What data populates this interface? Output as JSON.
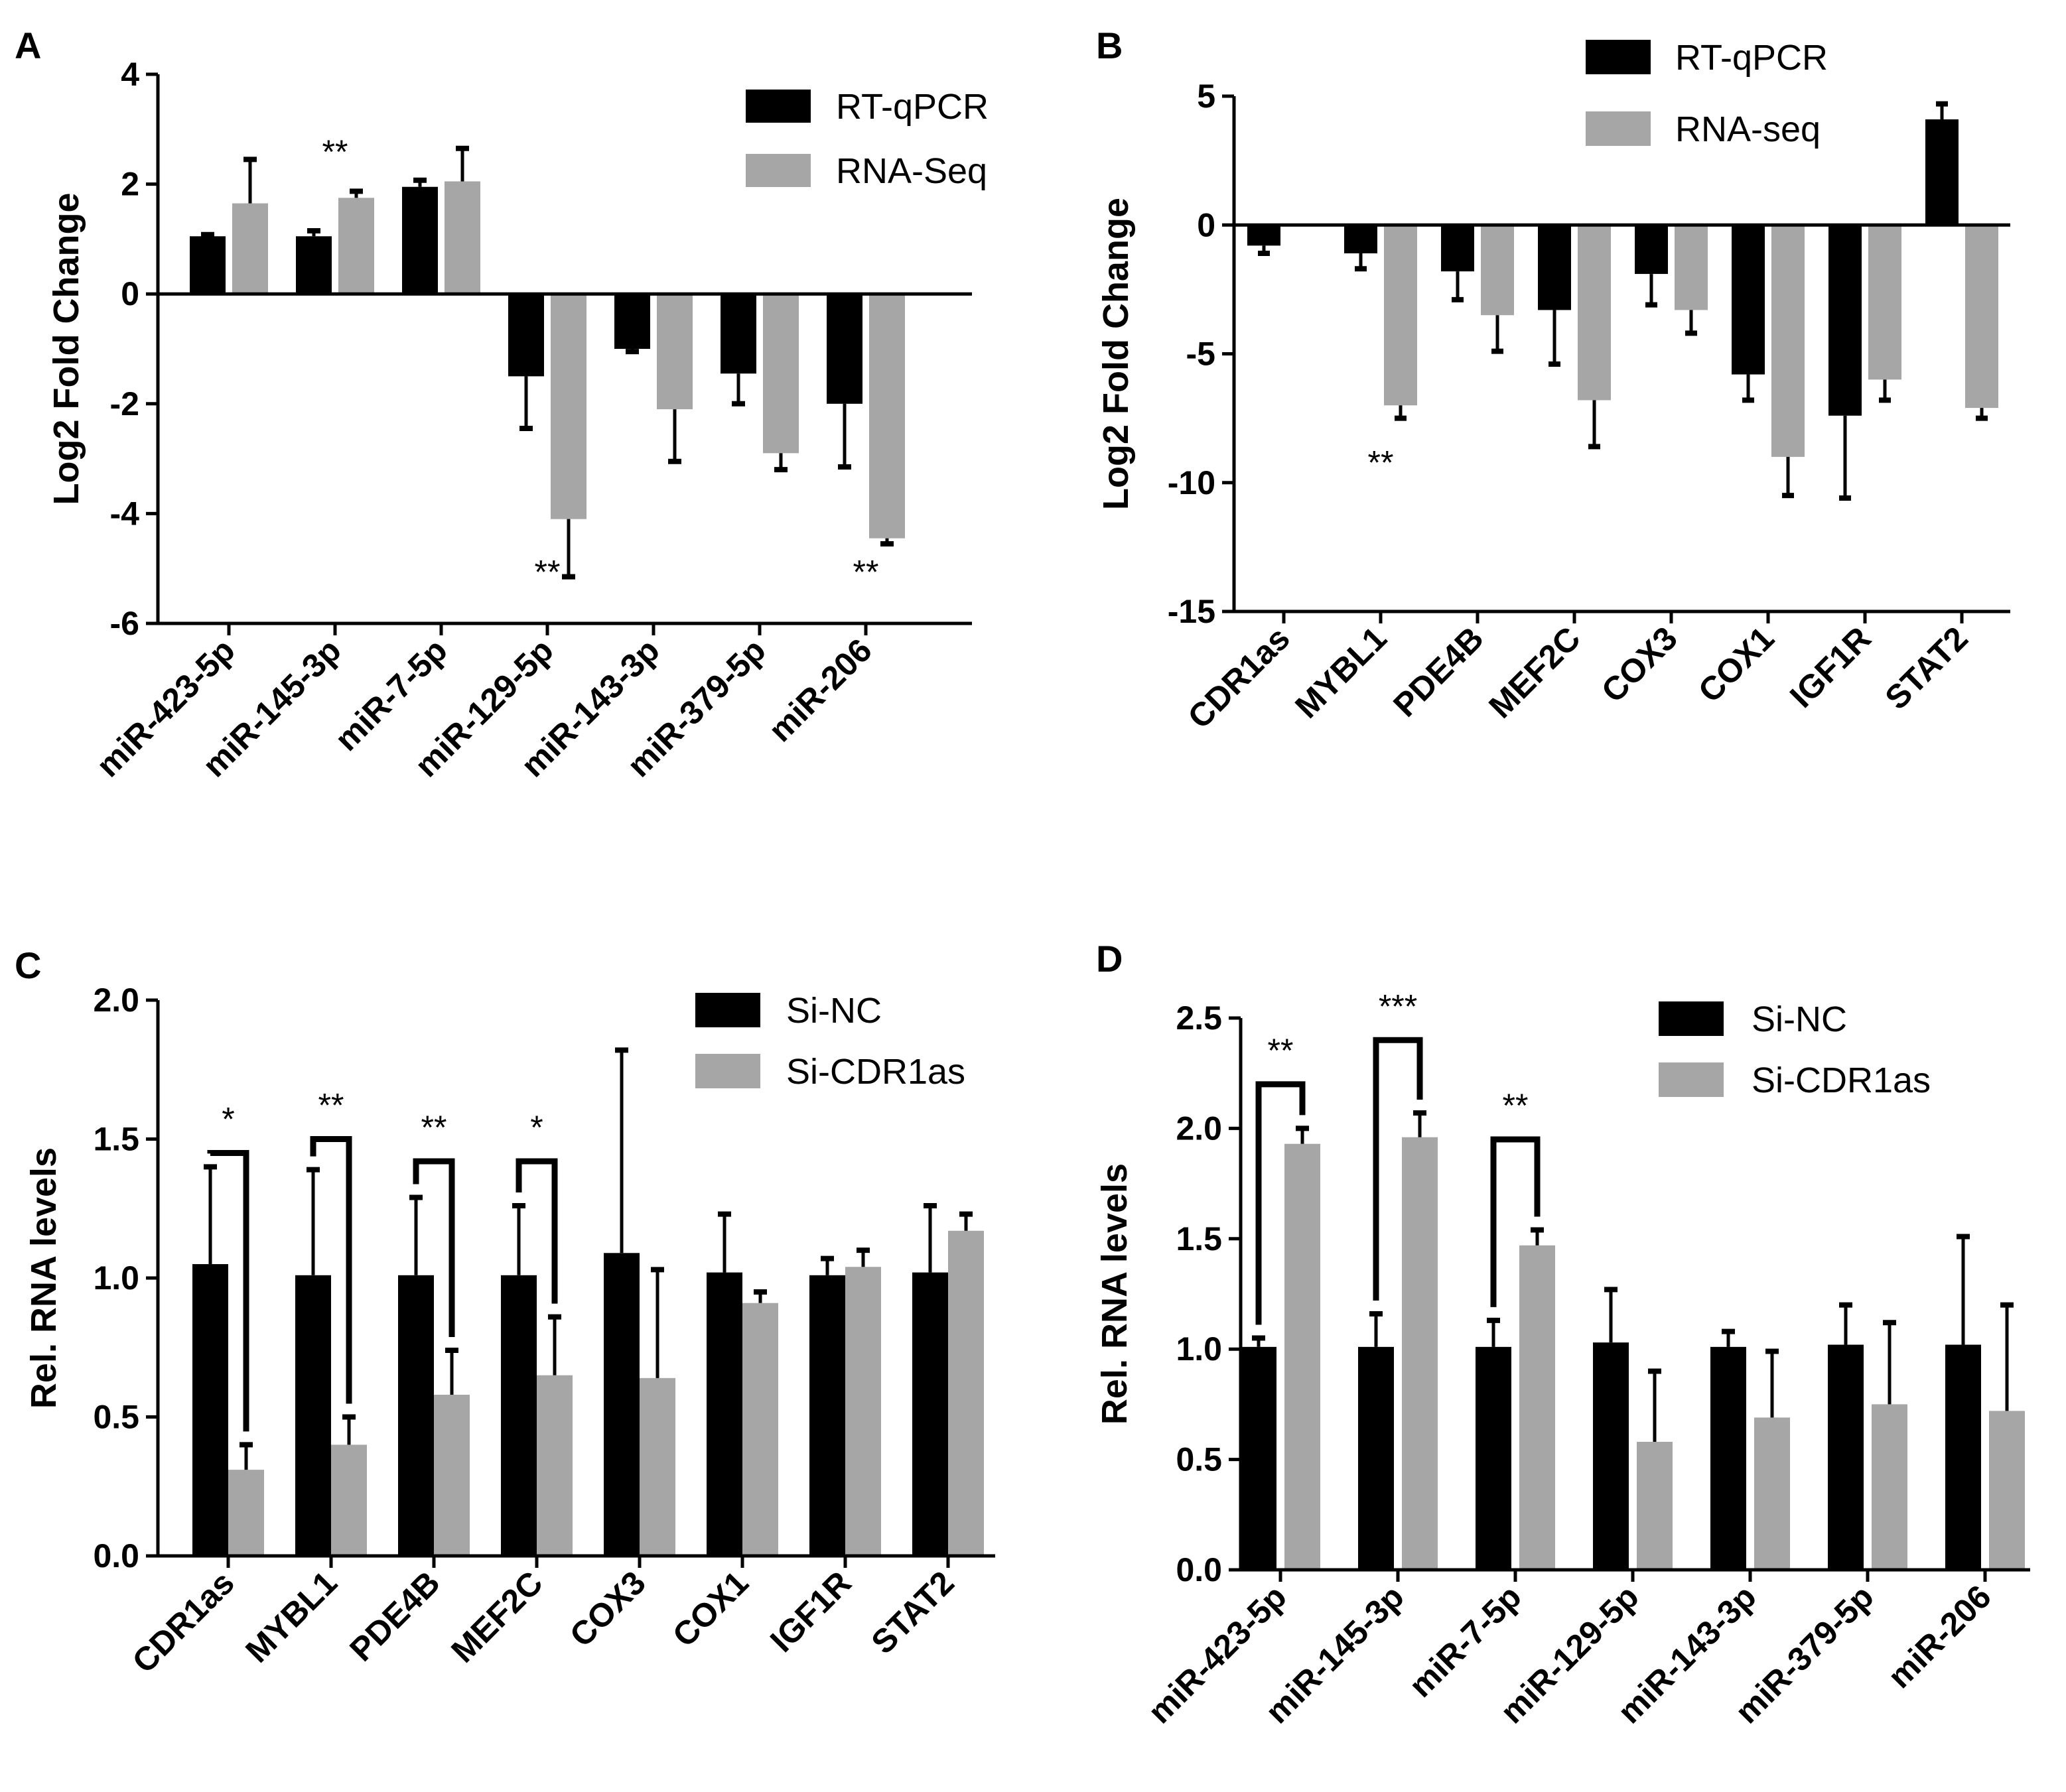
{
  "colors": {
    "rtqpcr": "#000000",
    "seq": "#a6a6a6",
    "axis": "#000000"
  },
  "chart_data": [
    {
      "panel": "A",
      "type": "bar",
      "ylabel": "Log2 Fold Change",
      "ylim": [
        -6,
        4
      ],
      "yticks": [
        4,
        2,
        0,
        -2,
        -4,
        -6
      ],
      "ytick_labels": [
        "4",
        "2",
        "0",
        "-2",
        "-4",
        "-6"
      ],
      "categories": [
        "miR-423-5p",
        "miR-145-3p",
        "miR-7-5p",
        "miR-129-5p",
        "miR-143-3p",
        "miR-379-5p",
        "miR-206"
      ],
      "series": [
        {
          "name": "RT-qPCR",
          "values": [
            1.05,
            1.05,
            1.95,
            -1.5,
            -1.0,
            -1.45,
            -2.0
          ],
          "errors": [
            0.03,
            0.1,
            0.12,
            0.95,
            0.05,
            0.55,
            1.15
          ]
        },
        {
          "name": "RNA-Seq",
          "values": [
            1.65,
            1.75,
            2.05,
            -4.1,
            -2.1,
            -2.9,
            -4.45
          ],
          "errors": [
            0.8,
            0.12,
            0.6,
            1.05,
            0.95,
            0.3,
            0.1
          ]
        }
      ],
      "annotations": [
        {
          "category": 1,
          "text": "**",
          "y": 2.6
        },
        {
          "category": 3,
          "text": "**",
          "y": -5.05
        },
        {
          "category": 6,
          "text": "**",
          "y": -5.05
        }
      ]
    },
    {
      "panel": "B",
      "type": "bar",
      "ylabel": "Log2 Fold Change",
      "ylim": [
        -15,
        5
      ],
      "yticks": [
        5,
        0,
        -5,
        -10,
        -15
      ],
      "ytick_labels": [
        "5",
        "0",
        "-5",
        "-10",
        "-15"
      ],
      "categories": [
        "CDR1as",
        "MYBL1",
        "PDE4B",
        "MEF2C",
        "COX3",
        "COX1",
        "IGF1R",
        "STAT2"
      ],
      "series": [
        {
          "name": "RT-qPCR",
          "values": [
            -0.8,
            -1.1,
            -1.8,
            -3.3,
            -1.9,
            -5.8,
            -7.4,
            4.1
          ],
          "errors": [
            0.3,
            0.6,
            1.1,
            2.1,
            1.2,
            1.0,
            3.2,
            0.6
          ]
        },
        {
          "name": "RNA-seq",
          "values": [
            0,
            -7.0,
            -3.5,
            -6.8,
            -3.3,
            -9.0,
            -6.0,
            -7.1
          ],
          "errors": [
            0,
            0.5,
            1.4,
            1.8,
            0.9,
            1.5,
            0.8,
            0.4
          ]
        }
      ],
      "annotations": [
        {
          "category": 1,
          "text": "**",
          "y": -9.2
        }
      ]
    },
    {
      "panel": "C",
      "type": "bar",
      "ylabel": "Rel. RNA levels",
      "ylim": [
        0,
        2.0
      ],
      "yticks": [
        2.0,
        1.5,
        1.0,
        0.5,
        0.0
      ],
      "ytick_labels": [
        "2.0",
        "1.5",
        "1.0",
        "0.5",
        "0.0"
      ],
      "categories": [
        "CDR1as",
        "MYBL1",
        "PDE4B",
        "MEF2C",
        "COX3",
        "COX1",
        "IGF1R",
        "STAT2"
      ],
      "series": [
        {
          "name": "Si-NC",
          "values": [
            1.05,
            1.01,
            1.01,
            1.01,
            1.09,
            1.02,
            1.01,
            1.02
          ],
          "errors": [
            0.35,
            0.38,
            0.28,
            0.25,
            0.73,
            0.21,
            0.06,
            0.24
          ]
        },
        {
          "name": "Si-CDR1as",
          "values": [
            0.31,
            0.4,
            0.58,
            0.65,
            0.64,
            0.91,
            1.04,
            1.17
          ],
          "errors": [
            0.09,
            0.1,
            0.16,
            0.21,
            0.39,
            0.04,
            0.06,
            0.06
          ]
        }
      ],
      "brackets": [
        {
          "category": 0,
          "top": 1.45,
          "text": "*"
        },
        {
          "category": 1,
          "top": 1.5,
          "text": "**"
        },
        {
          "category": 2,
          "top": 1.42,
          "text": "**"
        },
        {
          "category": 3,
          "top": 1.42,
          "text": "*"
        }
      ]
    },
    {
      "panel": "D",
      "type": "bar",
      "ylabel": "Rel. RNA levels",
      "ylim": [
        0,
        2.5
      ],
      "yticks": [
        2.5,
        2.0,
        1.5,
        1.0,
        0.5,
        0.0
      ],
      "ytick_labels": [
        "2.5",
        "2.0",
        "1.5",
        "1.0",
        "0.5",
        "0.0"
      ],
      "categories": [
        "miR-423-5p",
        "miR-145-3p",
        "miR-7-5p",
        "miR-129-5p",
        "miR-143-3p",
        "miR-379-5p",
        "miR-206"
      ],
      "series": [
        {
          "name": "Si-NC",
          "values": [
            1.01,
            1.01,
            1.01,
            1.03,
            1.01,
            1.02,
            1.02
          ],
          "errors": [
            0.04,
            0.15,
            0.12,
            0.24,
            0.07,
            0.18,
            0.49
          ]
        },
        {
          "name": "Si-CDR1as",
          "values": [
            1.93,
            1.96,
            1.47,
            0.58,
            0.69,
            0.75,
            0.72
          ],
          "errors": [
            0.07,
            0.11,
            0.07,
            0.32,
            0.3,
            0.37,
            0.48
          ]
        }
      ],
      "brackets": [
        {
          "category": 0,
          "top": 2.2,
          "text": "**"
        },
        {
          "category": 1,
          "top": 2.4,
          "text": "***"
        },
        {
          "category": 2,
          "top": 1.95,
          "text": "**"
        }
      ]
    }
  ]
}
